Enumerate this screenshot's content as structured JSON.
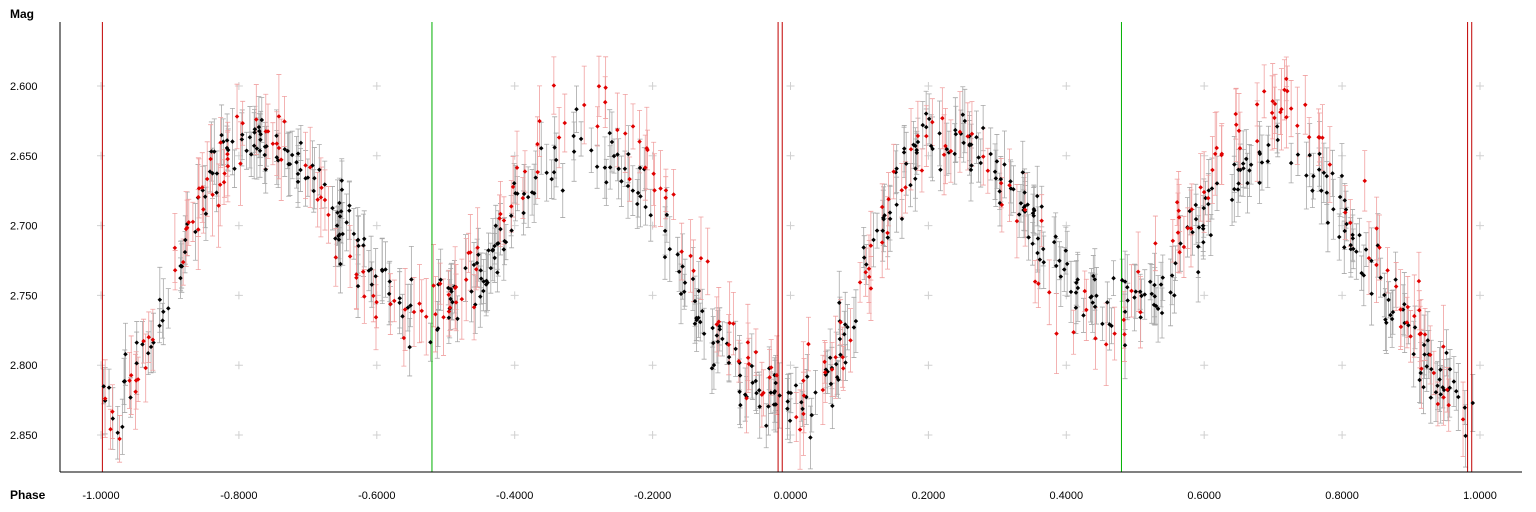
{
  "chart_data": {
    "type": "scatter",
    "title": "",
    "xlabel": "Phase",
    "ylabel": "Mag",
    "xlim": [
      -1.055,
      1.055
    ],
    "ylim": [
      2.56,
      2.875
    ],
    "y_inverted": true,
    "grid": "sparse plus-markers",
    "x_ticks": [
      -1.0,
      -0.8,
      -0.6,
      -0.4,
      -0.2,
      0.0,
      0.2,
      0.4,
      0.6,
      0.8,
      1.0
    ],
    "x_tick_labels": [
      "-1.0000",
      "-0.8000",
      "-0.6000",
      "-0.4000",
      "-0.2000",
      "0.0000",
      "0.2000",
      "0.4000",
      "0.6000",
      "0.8000",
      "1.0000"
    ],
    "y_ticks": [
      2.6,
      2.65,
      2.7,
      2.75,
      2.8,
      2.85
    ],
    "y_tick_labels": [
      "2.600",
      "2.650",
      "2.700",
      "2.750",
      "2.800",
      "2.850"
    ],
    "vertical_markers": [
      {
        "x": -0.998,
        "color": "#c00000"
      },
      {
        "x": -0.018,
        "color": "#c00000"
      },
      {
        "x": -0.012,
        "color": "#c00000"
      },
      {
        "x": 0.982,
        "color": "#c00000"
      },
      {
        "x": 0.988,
        "color": "#c00000"
      },
      {
        "x": -0.52,
        "color": "#00b000"
      },
      {
        "x": 0.48,
        "color": "#00b000"
      }
    ],
    "light_curve": {
      "description_points_phase": [
        0.0,
        0.22,
        0.48,
        0.7,
        1.0
      ],
      "description_points_mag": [
        2.83,
        2.635,
        2.76,
        2.645,
        2.83
      ],
      "red_secondary_max_mag": 2.62,
      "red_secondary_min_mag": 2.79,
      "point_count_black": 560,
      "point_count_red": 280,
      "scatter_black": 0.012,
      "scatter_red": 0.014
    },
    "series": [
      {
        "color": "#000000",
        "errorbar_color": "#a8a8a8"
      },
      {
        "color": "#e00000",
        "errorbar_color": "#f0a0a0"
      }
    ]
  }
}
